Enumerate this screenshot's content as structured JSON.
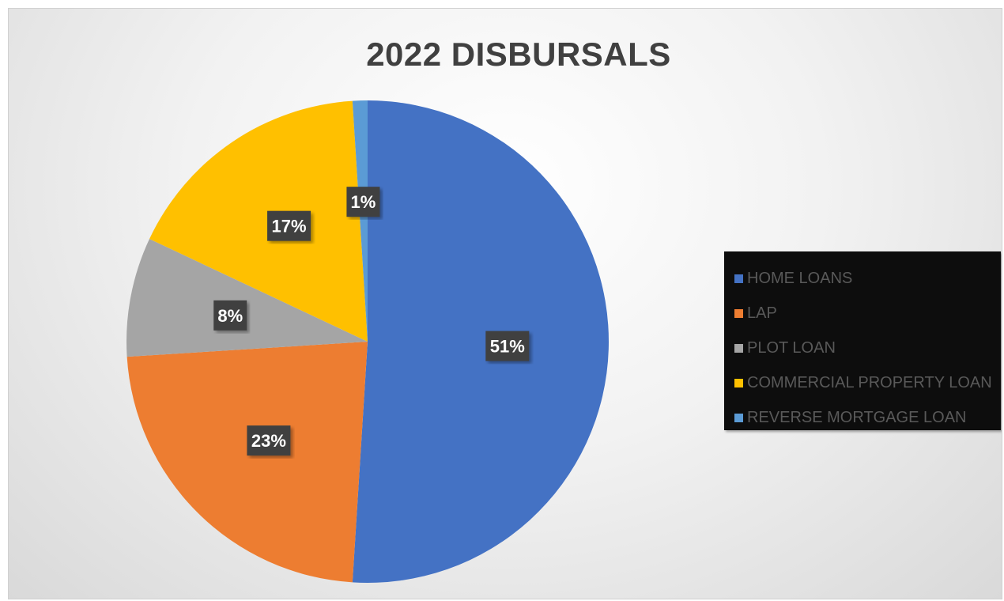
{
  "chart_data": {
    "type": "pie",
    "title": "2022 DISBURSALS",
    "categories": [
      "HOME LOANS",
      "LAP",
      "PLOT LOAN",
      "COMMERCIAL PROPERTY LOAN",
      "REVERSE MORTGAGE LOAN"
    ],
    "values": [
      51,
      23,
      8,
      17,
      1
    ],
    "labels": [
      "51%",
      "23%",
      "8%",
      "17%",
      "1%"
    ],
    "colors": [
      "#4472C4",
      "#ED7D31",
      "#A5A5A5",
      "#FFC000",
      "#5B9BD5"
    ],
    "legend": "right"
  }
}
